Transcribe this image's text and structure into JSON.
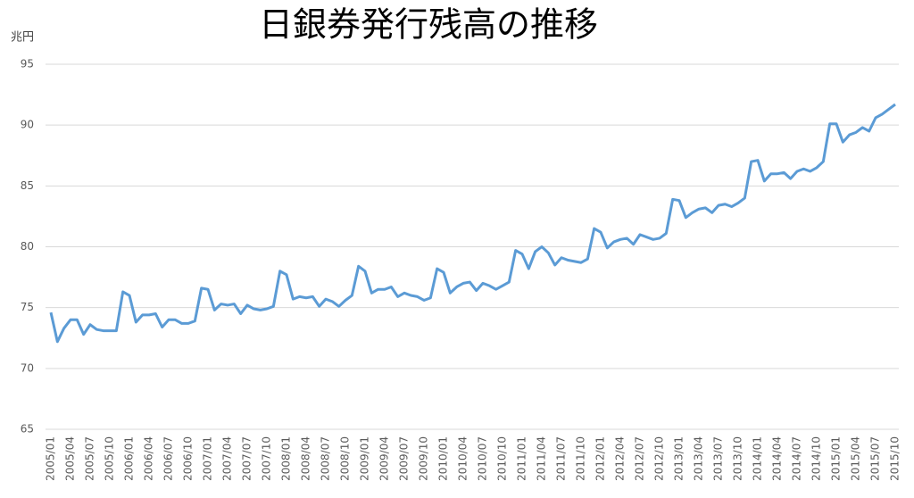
{
  "chart_data": {
    "type": "line",
    "title": "日銀券発行残高の推移",
    "y_label": "兆円",
    "categories": [
      "2005/01",
      null,
      null,
      "2005/04",
      null,
      null,
      "2005/07",
      null,
      null,
      "2005/10",
      null,
      null,
      "2006/01",
      null,
      null,
      "2006/04",
      null,
      null,
      "2006/07",
      null,
      null,
      "2006/10",
      null,
      null,
      "2007/01",
      null,
      null,
      "2007/04",
      null,
      null,
      "2007/07",
      null,
      null,
      "2007/10",
      null,
      null,
      "2008/01",
      null,
      null,
      "2008/04",
      null,
      null,
      "2008/07",
      null,
      null,
      "2008/10",
      null,
      null,
      "2009/01",
      null,
      null,
      "2009/04",
      null,
      null,
      "2009/07",
      null,
      null,
      "2009/10",
      null,
      null,
      "2010/01",
      null,
      null,
      "2010/04",
      null,
      null,
      "2010/07",
      null,
      null,
      "2010/10",
      null,
      null,
      "2011/01",
      null,
      null,
      "2011/04",
      null,
      null,
      "2011/07",
      null,
      null,
      "2011/10",
      null,
      null,
      "2012/01",
      null,
      null,
      "2012/04",
      null,
      null,
      "2012/07",
      null,
      null,
      "2012/10",
      null,
      null,
      "2013/01",
      null,
      null,
      "2013/04",
      null,
      null,
      "2013/07",
      null,
      null,
      "2013/10",
      null,
      null,
      "2014/01",
      null,
      null,
      "2014/04",
      null,
      null,
      "2014/07",
      null,
      null,
      "2014/10",
      null,
      null,
      "2015/01",
      null,
      null,
      "2015/04",
      null,
      null,
      "2015/07",
      null,
      null,
      "2015/10"
    ],
    "series": [
      {
        "name": "日銀券発行残高",
        "color": "#5b9bd5",
        "values": [
          74.6,
          72.2,
          73.3,
          74.0,
          74.0,
          72.8,
          73.6,
          73.2,
          73.1,
          73.1,
          73.1,
          76.3,
          76.0,
          73.8,
          74.4,
          74.4,
          74.5,
          73.4,
          74.0,
          74.0,
          73.7,
          73.7,
          73.9,
          76.6,
          76.5,
          74.8,
          75.3,
          75.2,
          75.3,
          74.5,
          75.2,
          74.9,
          74.8,
          74.9,
          75.1,
          78.0,
          77.7,
          75.7,
          75.9,
          75.8,
          75.9,
          75.1,
          75.7,
          75.5,
          75.1,
          75.6,
          76.0,
          78.4,
          78.0,
          76.2,
          76.5,
          76.5,
          76.7,
          75.9,
          76.2,
          76.0,
          75.9,
          75.6,
          75.8,
          78.2,
          77.9,
          76.2,
          76.7,
          77.0,
          77.1,
          76.4,
          77.0,
          76.8,
          76.5,
          76.8,
          77.1,
          79.7,
          79.4,
          78.2,
          79.6,
          80.0,
          79.5,
          78.5,
          79.1,
          78.9,
          78.8,
          78.7,
          79.0,
          81.5,
          81.2,
          79.9,
          80.4,
          80.6,
          80.7,
          80.2,
          81.0,
          80.8,
          80.6,
          80.7,
          81.1,
          83.9,
          83.8,
          82.4,
          82.8,
          83.1,
          83.2,
          82.8,
          83.4,
          83.5,
          83.3,
          83.6,
          84.0,
          87.0,
          87.1,
          85.4,
          86.0,
          86.0,
          86.1,
          85.6,
          86.2,
          86.4,
          86.2,
          86.5,
          87.0,
          90.1,
          90.1,
          88.6,
          89.2,
          89.4,
          89.8,
          89.5,
          90.6,
          90.9,
          91.3,
          91.7
        ]
      }
    ],
    "ylim": [
      65,
      95
    ],
    "yticks": [
      65,
      70,
      75,
      80,
      85,
      90,
      95
    ],
    "grid": true
  }
}
